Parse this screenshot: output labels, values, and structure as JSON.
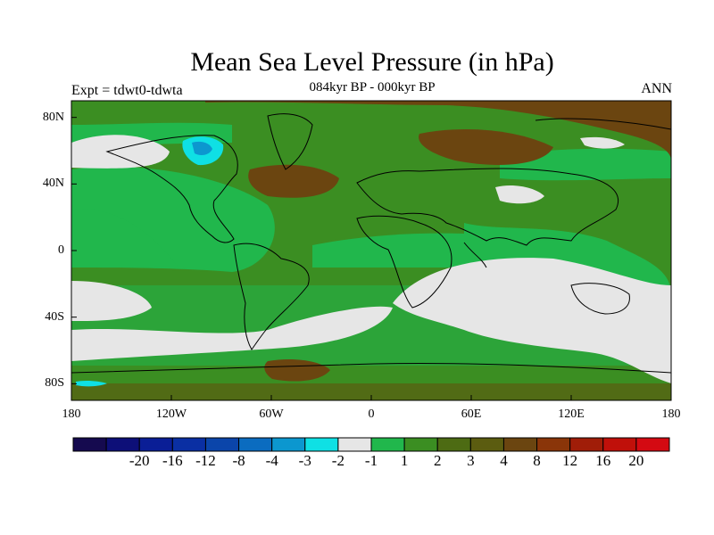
{
  "header": {
    "title": "Mean Sea Level Pressure (in hPa)",
    "subtitle": "084kyr BP - 000kyr BP",
    "experiment": "Expt = tdwt0-tdwta",
    "season": "ANN"
  },
  "axes": {
    "lat_ticks": [
      {
        "value": 80,
        "label": "80N"
      },
      {
        "value": 40,
        "label": "40N"
      },
      {
        "value": 0,
        "label": "0"
      },
      {
        "value": -40,
        "label": "40S"
      },
      {
        "value": -80,
        "label": "80S"
      }
    ],
    "lon_ticks": [
      {
        "value": -180,
        "label": "180"
      },
      {
        "value": -120,
        "label": "120W"
      },
      {
        "value": -60,
        "label": "60W"
      },
      {
        "value": 0,
        "label": "0"
      },
      {
        "value": 60,
        "label": "60E"
      },
      {
        "value": 120,
        "label": "120E"
      },
      {
        "value": 180,
        "label": "180"
      }
    ]
  },
  "colorbar": {
    "colors": [
      "#150a4f",
      "#0d0f78",
      "#0a1e96",
      "#0a2fa3",
      "#0b45aa",
      "#0b6cc0",
      "#0c97cf",
      "#0fe0e4",
      "#e6e6e6",
      "#21b74c",
      "#3b8e22",
      "#4d6b13",
      "#5b5c10",
      "#6b4510",
      "#8a3509",
      "#a01d08",
      "#c0100a",
      "#d40a12"
    ],
    "labels": [
      "-20",
      "-16",
      "-12",
      "-8",
      "-4",
      "-3",
      "-2",
      "-1",
      "1",
      "2",
      "3",
      "4",
      "8",
      "12",
      "16",
      "20"
    ]
  }
}
